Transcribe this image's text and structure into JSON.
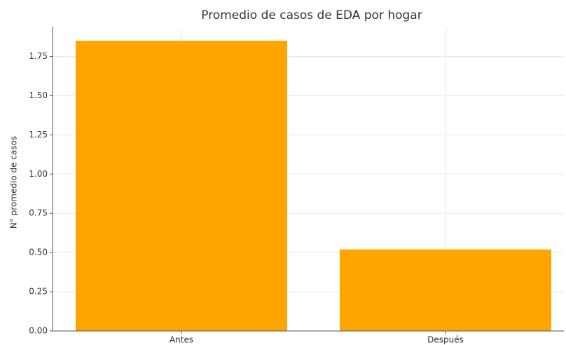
{
  "chart_data": {
    "type": "bar",
    "title": "Promedio de casos de EDA por hogar",
    "ylabel": "N° promedio de casos",
    "categories": [
      "Antes",
      "Después"
    ],
    "values": [
      1.85,
      0.52
    ],
    "color": "#ffa500",
    "ylim": [
      0,
      1.94
    ],
    "yticks": [
      {
        "value": 0,
        "label": "0.00"
      },
      {
        "value": 0.25,
        "label": "0.25"
      },
      {
        "value": 0.5,
        "label": "0.50"
      },
      {
        "value": 0.75,
        "label": "0.75"
      },
      {
        "value": 1,
        "label": "1.00"
      },
      {
        "value": 1.25,
        "label": "1.25"
      },
      {
        "value": 1.5,
        "label": "1.50"
      },
      {
        "value": 1.75,
        "label": "1.75"
      }
    ],
    "grid": true
  }
}
